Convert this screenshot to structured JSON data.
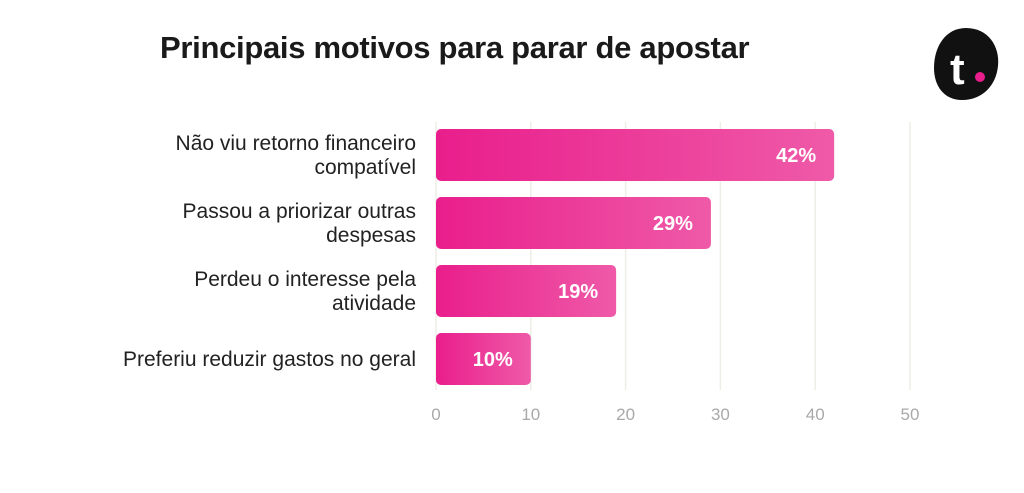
{
  "chart_data": {
    "type": "bar",
    "orientation": "horizontal",
    "title": "Principais motivos para parar de apostar",
    "categories": [
      [
        "Não viu retorno financeiro",
        "compatível"
      ],
      [
        "Passou a priorizar outras",
        "despesas"
      ],
      [
        "Perdeu o interesse pela",
        "atividade"
      ],
      [
        "Preferiu reduzir gastos no geral"
      ]
    ],
    "values": [
      42,
      29,
      19,
      10
    ],
    "data_labels": [
      "42%",
      "29%",
      "19%",
      "10%"
    ],
    "xlim": [
      0,
      50
    ],
    "xticks": [
      0,
      10,
      20,
      30,
      40,
      50
    ],
    "xlabel": "",
    "ylabel": "",
    "grid": true,
    "legend": "none",
    "colors": {
      "bar_start": "#e91e8c",
      "bar_end": "#ef5aa8",
      "grid": "#eeede6",
      "tick_text": "#a9a9a9"
    }
  },
  "logo": {
    "letter": "t.",
    "icon": "brand-logo-icon",
    "bg": "#111111",
    "dot": "#e91e8c"
  }
}
